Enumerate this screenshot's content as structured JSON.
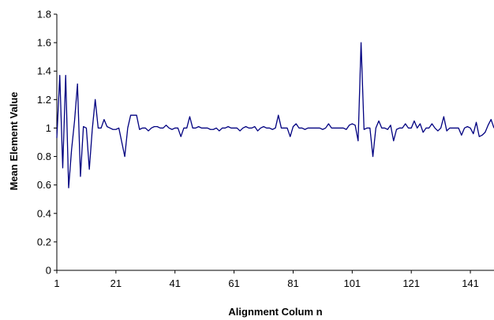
{
  "chart_data": {
    "type": "line",
    "title": "",
    "xlabel": "Alignment Colum n",
    "ylabel": "Mean Element Value",
    "xlim": [
      1,
      149
    ],
    "ylim": [
      0,
      1.8
    ],
    "x_ticks": [
      1,
      21,
      41,
      61,
      81,
      101,
      121,
      141
    ],
    "x_tick_labels": [
      "1",
      "21",
      "41",
      "61",
      "81",
      "101",
      "121",
      "141"
    ],
    "y_ticks": [
      0,
      0.2,
      0.4,
      0.6,
      0.8,
      1,
      1.2,
      1.4,
      1.6,
      1.8
    ],
    "y_tick_labels": [
      "0",
      "0.2",
      "0.4",
      "0.6",
      "0.8",
      "1",
      "1.2",
      "1.4",
      "1.6",
      "1.8"
    ],
    "grid": false,
    "legend": "none",
    "series": [
      {
        "color": "#000080",
        "x_start": 1,
        "values": [
          0.93,
          1.37,
          0.72,
          1.37,
          0.58,
          0.85,
          1.05,
          1.31,
          0.66,
          1.01,
          1.0,
          0.71,
          0.99,
          1.2,
          1.0,
          1.0,
          1.06,
          1.01,
          1.0,
          0.99,
          0.99,
          1.0,
          0.9,
          0.8,
          1.0,
          1.09,
          1.09,
          1.09,
          0.99,
          1.0,
          1.0,
          0.98,
          1.0,
          1.01,
          1.01,
          1.0,
          1.0,
          1.02,
          1.0,
          0.99,
          1.0,
          1.0,
          0.94,
          1.0,
          1.0,
          1.08,
          1.0,
          1.0,
          1.01,
          1.0,
          1.0,
          1.0,
          0.99,
          0.99,
          1.0,
          0.98,
          1.0,
          1.0,
          1.01,
          1.0,
          1.0,
          1.0,
          0.98,
          1.0,
          1.01,
          1.0,
          1.0,
          1.01,
          0.98,
          1.0,
          1.01,
          1.0,
          1.0,
          0.99,
          1.0,
          1.09,
          1.0,
          1.0,
          1.0,
          0.94,
          1.01,
          1.03,
          1.0,
          1.0,
          0.99,
          1.0,
          1.0,
          1.0,
          1.0,
          1.0,
          0.99,
          1.0,
          1.03,
          1.0,
          1.0,
          1.0,
          1.0,
          1.0,
          0.99,
          1.02,
          1.03,
          1.02,
          0.91,
          1.6,
          0.99,
          1.0,
          1.0,
          0.8,
          1.0,
          1.05,
          1.0,
          1.0,
          0.99,
          1.02,
          0.91,
          0.99,
          1.0,
          1.0,
          1.03,
          1.0,
          1.0,
          1.05,
          1.0,
          1.03,
          0.97,
          1.0,
          1.0,
          1.03,
          1.0,
          0.98,
          1.0,
          1.08,
          0.98,
          1.0,
          1.0,
          1.0,
          1.0,
          0.95,
          1.0,
          1.01,
          1.0,
          0.96,
          1.04,
          0.94,
          0.95,
          0.97,
          1.02,
          1.06,
          1.0
        ]
      }
    ]
  }
}
